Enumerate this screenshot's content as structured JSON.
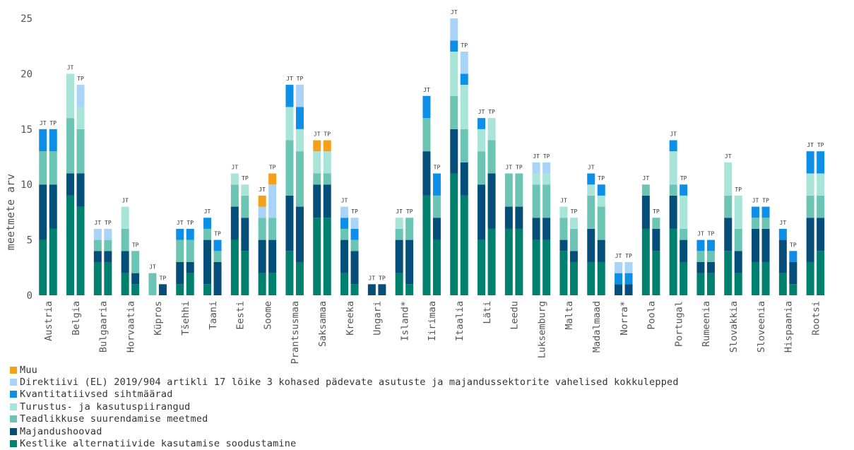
{
  "chart_data": {
    "type": "bar",
    "stacked": true,
    "ylabel": "meetmete arv",
    "ylim": [
      0,
      25
    ],
    "yticks": [
      0,
      5,
      10,
      15,
      20,
      25
    ],
    "grid": false,
    "legend_position": "bottom-left",
    "bar_labels": [
      "JT",
      "TP"
    ],
    "series": [
      {
        "name": "Kestlike alternatiivide kasutamise soodustamine",
        "color": "#00806E"
      },
      {
        "name": "Majandushoovad",
        "color": "#064E7A"
      },
      {
        "name": "Teadlikkuse suurendamise meetmed",
        "color": "#6CC5B4"
      },
      {
        "name": "Turustus- ja kasutuspiirangud",
        "color": "#A8E4D8"
      },
      {
        "name": "Kvantitatiivsed sihtmäärad",
        "color": "#0D8FE8"
      },
      {
        "name": "Direktiivi (EL) 2019/904 artikli 17 lõike 3 kohased pädevate asutuste ja majandussektorite vahelised kokkulepped",
        "color": "#A9D4F7"
      },
      {
        "name": "Muu",
        "color": "#F5A01B"
      }
    ],
    "countries": [
      {
        "name": "Austria",
        "JT": [
          5,
          5,
          3,
          0,
          2,
          0,
          0
        ],
        "TP": [
          6,
          4,
          3,
          0,
          2,
          0,
          0
        ]
      },
      {
        "name": "Belgia",
        "JT": [
          9,
          2,
          5,
          4,
          0,
          0,
          0
        ],
        "TP": [
          8,
          3,
          4,
          2,
          0,
          2,
          0
        ]
      },
      {
        "name": "Bulgaaria",
        "JT": [
          3,
          1,
          1,
          0,
          0,
          1,
          0
        ],
        "TP": [
          3,
          1,
          1,
          0,
          0,
          1,
          0
        ]
      },
      {
        "name": "Horvaatia",
        "JT": [
          2,
          2,
          2,
          2,
          0,
          0,
          0
        ],
        "TP": [
          1,
          1,
          2,
          0,
          0,
          0,
          0
        ]
      },
      {
        "name": "Küpros",
        "JT": [
          0,
          0,
          2,
          0,
          0,
          0,
          0
        ],
        "TP": [
          0,
          1,
          0,
          0,
          0,
          0,
          0
        ]
      },
      {
        "name": "Tšehhi",
        "JT": [
          1,
          2,
          2,
          0,
          1,
          0,
          0
        ],
        "TP": [
          2,
          1,
          2,
          0,
          1,
          0,
          0
        ]
      },
      {
        "name": "Taani",
        "JT": [
          1,
          4,
          1,
          0,
          1,
          0,
          0
        ],
        "TP": [
          0,
          3,
          1,
          0,
          1,
          0,
          0
        ]
      },
      {
        "name": "Eesti",
        "JT": [
          5,
          3,
          2,
          1,
          0,
          0,
          0
        ],
        "TP": [
          4,
          3,
          2,
          1,
          0,
          0,
          0
        ]
      },
      {
        "name": "Soome",
        "JT": [
          2,
          3,
          2,
          0,
          0,
          1,
          1
        ],
        "TP": [
          2,
          3,
          2,
          0,
          0,
          3,
          1
        ]
      },
      {
        "name": "Prantsusmaa",
        "JT": [
          4,
          5,
          5,
          3,
          2,
          0,
          0
        ],
        "TP": [
          3,
          5,
          5,
          2,
          2,
          2,
          0
        ]
      },
      {
        "name": "Saksamaa",
        "JT": [
          7,
          3,
          1,
          2,
          0,
          0,
          1
        ],
        "TP": [
          7,
          3,
          1,
          2,
          0,
          0,
          1
        ]
      },
      {
        "name": "Kreeka",
        "JT": [
          2,
          3,
          1,
          0,
          1,
          1,
          0
        ],
        "TP": [
          1,
          3,
          1,
          0,
          1,
          1,
          0
        ]
      },
      {
        "name": "Ungari",
        "JT": [
          0,
          1,
          0,
          0,
          0,
          0,
          0
        ],
        "TP": [
          0,
          1,
          0,
          0,
          0,
          0,
          0
        ]
      },
      {
        "name": "Island*",
        "JT": [
          2,
          3,
          1,
          1,
          0,
          0,
          0
        ],
        "TP": [
          1,
          4,
          2,
          0,
          0,
          0,
          0
        ]
      },
      {
        "name": "Iirimaa",
        "JT": [
          9,
          4,
          3,
          0,
          2,
          0,
          0
        ],
        "TP": [
          5,
          2,
          2,
          0,
          2,
          0,
          0
        ]
      },
      {
        "name": "Itaalia",
        "JT": [
          11,
          4,
          3,
          4,
          1,
          2,
          0
        ],
        "TP": [
          9,
          3,
          3,
          4,
          1,
          2,
          0
        ]
      },
      {
        "name": "Läti",
        "JT": [
          5,
          5,
          3,
          2,
          1,
          0,
          0
        ],
        "TP": [
          6,
          5,
          3,
          2,
          0,
          0,
          0
        ]
      },
      {
        "name": "Leedu",
        "JT": [
          6,
          2,
          3,
          0,
          0,
          0,
          0
        ],
        "TP": [
          6,
          2,
          3,
          0,
          0,
          0,
          0
        ]
      },
      {
        "name": "Luksemburg",
        "JT": [
          5,
          2,
          3,
          1,
          0,
          1,
          0
        ],
        "TP": [
          5,
          2,
          3,
          1,
          0,
          1,
          0
        ]
      },
      {
        "name": "Malta",
        "JT": [
          4,
          1,
          2,
          1,
          0,
          0,
          0
        ],
        "TP": [
          3,
          1,
          2,
          1,
          0,
          0,
          0
        ]
      },
      {
        "name": "Madalmaad",
        "JT": [
          3,
          3,
          3,
          1,
          1,
          0,
          0
        ],
        "TP": [
          3,
          2,
          3,
          1,
          1,
          0,
          0
        ]
      },
      {
        "name": "Norra*",
        "JT": [
          0,
          1,
          0,
          0,
          1,
          1,
          0
        ],
        "TP": [
          0,
          1,
          0,
          0,
          1,
          1,
          0
        ]
      },
      {
        "name": "Poola",
        "JT": [
          6,
          3,
          1,
          0,
          0,
          0,
          0
        ],
        "TP": [
          4,
          2,
          1,
          0,
          0,
          0,
          0
        ]
      },
      {
        "name": "Portugal",
        "JT": [
          6,
          3,
          1,
          3,
          1,
          0,
          0
        ],
        "TP": [
          3,
          2,
          1,
          3,
          1,
          0,
          0
        ]
      },
      {
        "name": "Rumeenia",
        "JT": [
          2,
          1,
          1,
          0,
          1,
          0,
          0
        ],
        "TP": [
          2,
          1,
          1,
          0,
          1,
          0,
          0
        ]
      },
      {
        "name": "Slovakkia",
        "JT": [
          4,
          3,
          2,
          3,
          0,
          0,
          0
        ],
        "TP": [
          2,
          2,
          2,
          3,
          0,
          0,
          0
        ]
      },
      {
        "name": "Sloveenia",
        "JT": [
          3,
          3,
          1,
          0,
          1,
          0,
          0
        ],
        "TP": [
          3,
          3,
          1,
          0,
          1,
          0,
          0
        ]
      },
      {
        "name": "Hispaania",
        "JT": [
          2,
          3,
          0,
          0,
          1,
          0,
          0
        ],
        "TP": [
          1,
          2,
          0,
          0,
          1,
          0,
          0
        ]
      },
      {
        "name": "Rootsi",
        "JT": [
          3,
          4,
          2,
          2,
          2,
          0,
          0
        ],
        "TP": [
          4,
          3,
          2,
          2,
          2,
          0,
          0
        ]
      }
    ]
  }
}
